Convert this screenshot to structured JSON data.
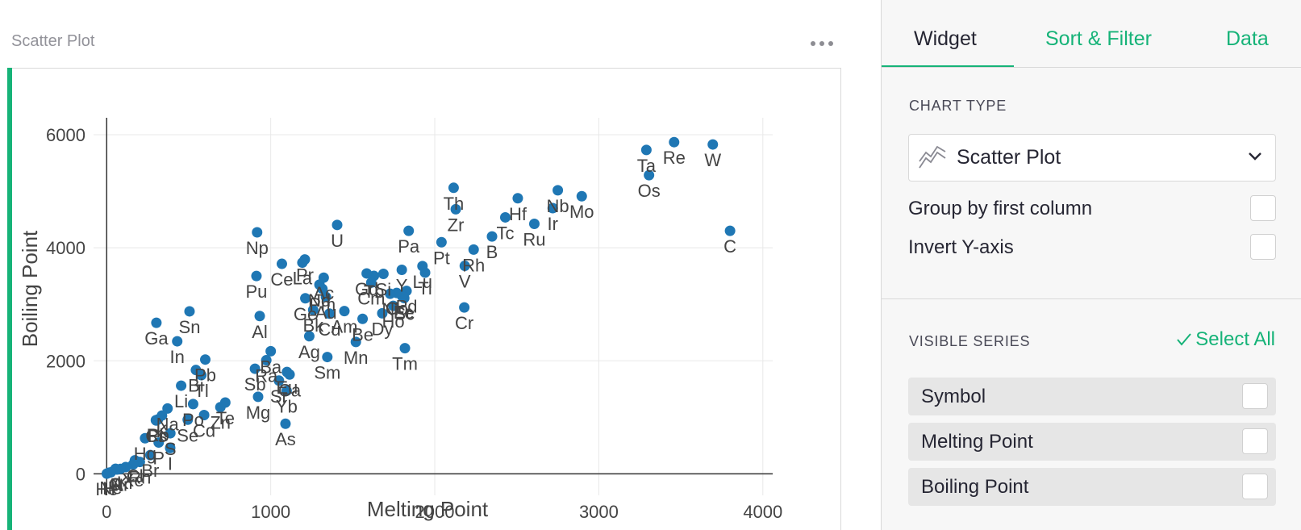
{
  "widget": {
    "title": "Scatter Plot"
  },
  "panel": {
    "tabs": [
      {
        "label": "Widget"
      },
      {
        "label": "Sort & Filter"
      },
      {
        "label": "Data"
      }
    ],
    "chart_type_label": "CHART TYPE",
    "chart_type_value": "Scatter Plot",
    "options": [
      {
        "label": "Group by first column"
      },
      {
        "label": "Invert Y-axis"
      }
    ],
    "visible_series_label": "VISIBLE SERIES",
    "select_all_label": "Select All",
    "series": [
      {
        "label": "Symbol"
      },
      {
        "label": "Melting Point"
      },
      {
        "label": "Boiling Point"
      }
    ],
    "accent_color": "#16b378"
  },
  "chart_data": {
    "type": "scatter",
    "xlabel": "Melting Point",
    "ylabel": "Boiling Point",
    "xlim": [
      -80,
      4060
    ],
    "ylim": [
      -380,
      6300
    ],
    "xticks": [
      0,
      1000,
      2000,
      3000,
      4000
    ],
    "yticks": [
      0,
      2000,
      4000,
      6000
    ],
    "grid": true,
    "point_color": "#1f77b4",
    "points": [
      {
        "label": "W",
        "x": 3695,
        "y": 5828
      },
      {
        "label": "Re",
        "x": 3459,
        "y": 5869
      },
      {
        "label": "Ta",
        "x": 3290,
        "y": 5731
      },
      {
        "label": "Os",
        "x": 3306,
        "y": 5285
      },
      {
        "label": "C",
        "x": 3800,
        "y": 4300
      },
      {
        "label": "Mo",
        "x": 2896,
        "y": 4912
      },
      {
        "label": "Nb",
        "x": 2750,
        "y": 5017
      },
      {
        "label": "Ir",
        "x": 2719,
        "y": 4701
      },
      {
        "label": "Ru",
        "x": 2607,
        "y": 4423
      },
      {
        "label": "Hf",
        "x": 2506,
        "y": 4876
      },
      {
        "label": "Tc",
        "x": 2430,
        "y": 4538
      },
      {
        "label": "B",
        "x": 2349,
        "y": 4200
      },
      {
        "label": "Rh",
        "x": 2237,
        "y": 3968
      },
      {
        "label": "V",
        "x": 2183,
        "y": 3680
      },
      {
        "label": "Cr",
        "x": 2180,
        "y": 2944
      },
      {
        "label": "Zr",
        "x": 2128,
        "y": 4682
      },
      {
        "label": "Th",
        "x": 2115,
        "y": 5061
      },
      {
        "label": "Pt",
        "x": 2041,
        "y": 4098
      },
      {
        "label": "Ti",
        "x": 1941,
        "y": 3560
      },
      {
        "label": "Lu",
        "x": 1925,
        "y": 3675
      },
      {
        "label": "Pa",
        "x": 1841,
        "y": 4300
      },
      {
        "label": "Tm",
        "x": 1818,
        "y": 2223
      },
      {
        "label": "Pd",
        "x": 1828,
        "y": 3236
      },
      {
        "label": "Y",
        "x": 1799,
        "y": 3609
      },
      {
        "label": "Fe",
        "x": 1811,
        "y": 3134
      },
      {
        "label": "Sc",
        "x": 1814,
        "y": 3109
      },
      {
        "label": "Er",
        "x": 1802,
        "y": 3141
      },
      {
        "label": "Co",
        "x": 1768,
        "y": 3200
      },
      {
        "label": "Ho",
        "x": 1747,
        "y": 2973
      },
      {
        "label": "Ni",
        "x": 1728,
        "y": 3186
      },
      {
        "label": "Dy",
        "x": 1680,
        "y": 2840
      },
      {
        "label": "Tb",
        "x": 1629,
        "y": 3503
      },
      {
        "label": "Si",
        "x": 1687,
        "y": 3538
      },
      {
        "label": "Gd",
        "x": 1585,
        "y": 3546
      },
      {
        "label": "Cm",
        "x": 1613,
        "y": 3383
      },
      {
        "label": "Be",
        "x": 1560,
        "y": 2742
      },
      {
        "label": "Mn",
        "x": 1519,
        "y": 2334
      },
      {
        "label": "Am",
        "x": 1449,
        "y": 2880
      },
      {
        "label": "U",
        "x": 1405,
        "y": 4404
      },
      {
        "label": "Sm",
        "x": 1345,
        "y": 2067
      },
      {
        "label": "Cu",
        "x": 1358,
        "y": 2835
      },
      {
        "label": "Nd",
        "x": 1297,
        "y": 3347
      },
      {
        "label": "Au",
        "x": 1337,
        "y": 3129
      },
      {
        "label": "Ac",
        "x": 1323,
        "y": 3471
      },
      {
        "label": "Pm",
        "x": 1315,
        "y": 3273
      },
      {
        "label": "Ag",
        "x": 1235,
        "y": 2435
      },
      {
        "label": "Ge",
        "x": 1211,
        "y": 3106
      },
      {
        "label": "Pr",
        "x": 1208,
        "y": 3793
      },
      {
        "label": "La",
        "x": 1193,
        "y": 3737
      },
      {
        "label": "Bk",
        "x": 1259,
        "y": 2900
      },
      {
        "label": "Ce",
        "x": 1068,
        "y": 3716
      },
      {
        "label": "Eu",
        "x": 1099,
        "y": 1802
      },
      {
        "label": "Ca",
        "x": 1115,
        "y": 1757
      },
      {
        "label": "Sr",
        "x": 1050,
        "y": 1650
      },
      {
        "label": "Yb",
        "x": 1097,
        "y": 1469
      },
      {
        "label": "As",
        "x": 1090,
        "y": 887
      },
      {
        "label": "Ba",
        "x": 1000,
        "y": 2170
      },
      {
        "label": "Ra",
        "x": 973,
        "y": 2010
      },
      {
        "label": "Np",
        "x": 917,
        "y": 4273
      },
      {
        "label": "Pu",
        "x": 913,
        "y": 3501
      },
      {
        "label": "Al",
        "x": 933,
        "y": 2792
      },
      {
        "label": "Sb",
        "x": 904,
        "y": 1860
      },
      {
        "label": "Mg",
        "x": 923,
        "y": 1363
      },
      {
        "label": "Ga",
        "x": 303,
        "y": 2673
      },
      {
        "label": "Sn",
        "x": 505,
        "y": 2875
      },
      {
        "label": "In",
        "x": 430,
        "y": 2345
      },
      {
        "label": "Pb",
        "x": 601,
        "y": 2022
      },
      {
        "label": "Bi",
        "x": 544,
        "y": 1837
      },
      {
        "label": "Tl",
        "x": 577,
        "y": 1746
      },
      {
        "label": "Li",
        "x": 454,
        "y": 1560
      },
      {
        "label": "Po",
        "x": 527,
        "y": 1235
      },
      {
        "label": "Cd",
        "x": 594,
        "y": 1040
      },
      {
        "label": "Zn",
        "x": 693,
        "y": 1180
      },
      {
        "label": "Te",
        "x": 723,
        "y": 1261
      },
      {
        "label": "Na",
        "x": 371,
        "y": 1156
      },
      {
        "label": "K",
        "x": 337,
        "y": 1032
      },
      {
        "label": "Se",
        "x": 494,
        "y": 958
      },
      {
        "label": "Rb",
        "x": 312,
        "y": 961
      },
      {
        "label": "Cs",
        "x": 302,
        "y": 944
      },
      {
        "label": "Fr",
        "x": 300,
        "y": 950
      },
      {
        "label": "S",
        "x": 388,
        "y": 718
      },
      {
        "label": "P",
        "x": 317,
        "y": 554
      },
      {
        "label": "I",
        "x": 387,
        "y": 457
      },
      {
        "label": "Hg",
        "x": 234,
        "y": 630
      },
      {
        "label": "Br",
        "x": 266,
        "y": 332
      },
      {
        "label": "Cl",
        "x": 172,
        "y": 239
      },
      {
        "label": "Rn",
        "x": 202,
        "y": 211
      },
      {
        "label": "Xe",
        "x": 161,
        "y": 165
      },
      {
        "label": "Kr",
        "x": 116,
        "y": 120
      },
      {
        "label": "Ar",
        "x": 84,
        "y": 87
      },
      {
        "label": "F",
        "x": 54,
        "y": 85
      },
      {
        "label": "O",
        "x": 54,
        "y": 90
      },
      {
        "label": "N",
        "x": 63,
        "y": 77
      },
      {
        "label": "Ne",
        "x": 25,
        "y": 27
      },
      {
        "label": "H",
        "x": 14,
        "y": 20
      },
      {
        "label": "He",
        "x": 1,
        "y": 4
      }
    ]
  }
}
